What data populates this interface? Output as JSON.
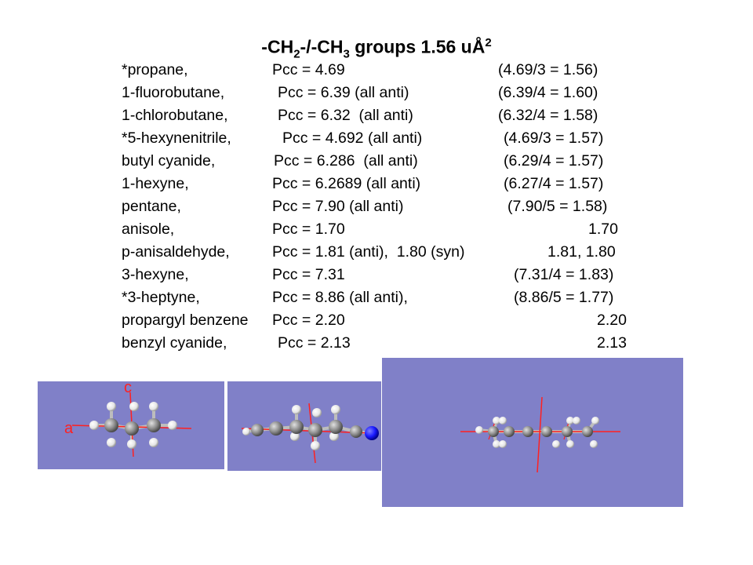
{
  "title": {
    "main": "-CH",
    "sub1": "2",
    "mid": "-/-CH",
    "sub2": "3",
    "rest": " groups  1.56 uÅ",
    "sup": "2"
  },
  "rows": [
    {
      "name": "*propane,",
      "pcc": "Pcc = 4.69",
      "calc": "(4.69/3 = 1.56)"
    },
    {
      "name": "1-fluorobutane,",
      "pcc": "Pcc = 6.39 (all anti)",
      "calc": "(6.39/4 = 1.60)"
    },
    {
      "name": "1-chlorobutane,",
      "pcc": "Pcc = 6.32  (all anti)",
      "calc": "(6.32/4 = 1.58)"
    },
    {
      "name": "*5-hexynenitrile,",
      "pcc": "Pcc = 4.692 (all anti)",
      "calc": "(4.69/3 = 1.57)"
    },
    {
      "name": "butyl cyanide,",
      "pcc": "Pcc = 6.286  (all anti)",
      "calc": "(6.29/4 = 1.57)"
    },
    {
      "name": "1-hexyne,",
      "pcc": "Pcc = 6.2689 (all anti)",
      "calc": "(6.27/4 = 1.57)"
    },
    {
      "name": "pentane,",
      "pcc": "Pcc = 7.90 (all anti)",
      "calc": "(7.90/5 = 1.58)"
    },
    {
      "name": "anisole,",
      "pcc": "Pcc = 1.70",
      "calc": "1.70"
    },
    {
      "name": "p-anisaldehyde,",
      "pcc": "Pcc = 1.81 (anti),  1.80 (syn)",
      "calc": "1.81, 1.80"
    },
    {
      "name": "3-hexyne,",
      "pcc": "Pcc = 7.31",
      "calc": "(7.31/4 = 1.83)"
    },
    {
      "name": "*3-heptyne,",
      "pcc": "Pcc = 8.86 (all anti),",
      "calc": "(8.86/5 = 1.77)"
    },
    {
      "name": "propargyl benzene",
      "pcc": "Pcc = 2.20",
      "calc": "2.20"
    },
    {
      "name": "benzyl cyanide,",
      "pcc": "Pcc = 2.13",
      "calc": "2.13"
    }
  ],
  "axis_labels": {
    "c": "c",
    "a": "a"
  },
  "colors": {
    "panel": "#8080c8",
    "axis": "#ff2020",
    "carbon": "#8c8c8c",
    "hydrogen": "#f0f0f0",
    "nitrogen": "#1a1aff"
  }
}
